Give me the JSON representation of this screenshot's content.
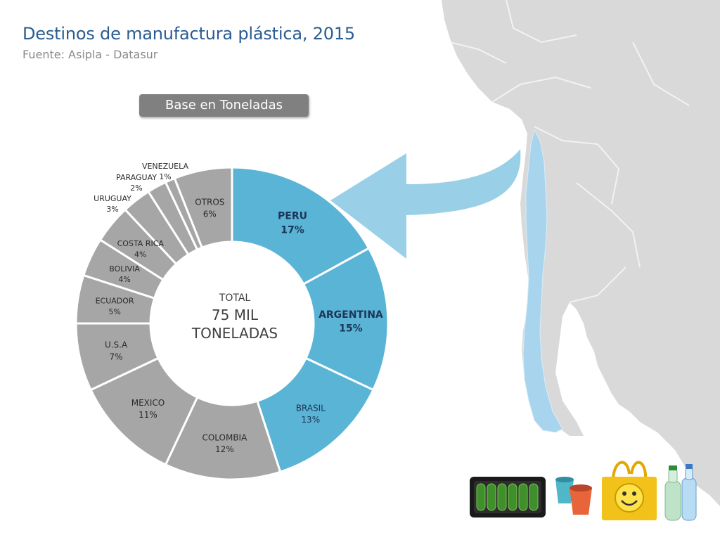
{
  "header": {
    "title": "Destinos de manufactura plástica, 2015",
    "subtitle": "Fuente: Asipla - Datasur"
  },
  "badge": {
    "label": "Base en Toneladas"
  },
  "center": {
    "line1": "TOTAL",
    "line2": "75 MIL",
    "line3": "TONELADAS"
  },
  "colors": {
    "highlight": "#5ab4d6",
    "other": "#a6a6a6",
    "title": "#2a5c92",
    "map_land": "#d9d9d9",
    "chile": "#a8d4ee",
    "arrow": "#8ecbe6"
  },
  "chart_data": {
    "type": "pie",
    "style": "donut",
    "title": "Destinos de manufactura plástica, 2015",
    "unit": "%",
    "slices": [
      {
        "label": "PERU",
        "value": 17,
        "highlight": true
      },
      {
        "label": "ARGENTINA",
        "value": 15,
        "highlight": true
      },
      {
        "label": "BRASIL",
        "value": 13,
        "highlight": true
      },
      {
        "label": "COLOMBIA",
        "value": 12,
        "highlight": false
      },
      {
        "label": "MEXICO",
        "value": 11,
        "highlight": false
      },
      {
        "label": "U.S.A",
        "value": 7,
        "highlight": false
      },
      {
        "label": "ECUADOR",
        "value": 5,
        "highlight": false
      },
      {
        "label": "BOLIVIA",
        "value": 4,
        "highlight": false
      },
      {
        "label": "COSTA RICA",
        "value": 4,
        "highlight": false
      },
      {
        "label": "URUGUAY",
        "value": 3,
        "highlight": false
      },
      {
        "label": "PARAGUAY",
        "value": 2,
        "highlight": false
      },
      {
        "label": "VENEZUELA",
        "value": 1,
        "highlight": false
      },
      {
        "label": "OTROS",
        "value": 6,
        "highlight": false
      }
    ]
  },
  "images": {
    "products": [
      "cucumber-tray-icon",
      "plastic-pots-icon",
      "smiley-bag-icon",
      "plastic-bottles-icon"
    ],
    "map": "south-america-map-icon"
  }
}
